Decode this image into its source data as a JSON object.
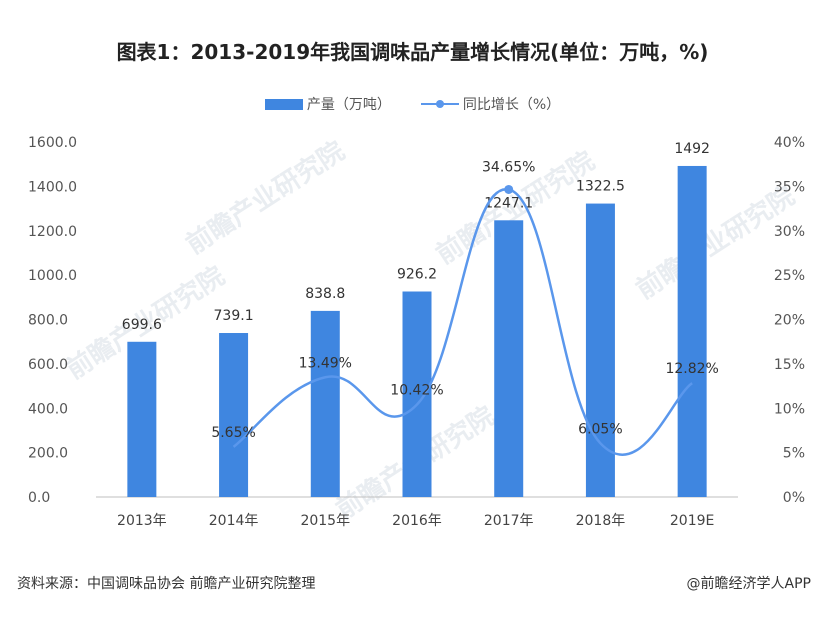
{
  "title": "图表1：2013-2019年我国调味品产量增长情况(单位：万吨，%)",
  "source": "资料来源：中国调味品协会 前瞻产业研究院整理",
  "credit": "@前瞻经济学人APP",
  "watermark": "前瞻产业研究院",
  "colors": {
    "bar": "#3f86e0",
    "line": "#5a97ec"
  },
  "chart_data": {
    "type": "bar",
    "categories": [
      "2013年",
      "2014年",
      "2015年",
      "2016年",
      "2017年",
      "2018年",
      "2019E"
    ],
    "series": [
      {
        "name": "产量（万吨）",
        "type": "bar",
        "axis": "left",
        "values": [
          699.6,
          739.1,
          838.8,
          926.2,
          1247.1,
          1322.5,
          1492
        ],
        "labels": [
          "699.6",
          "739.1",
          "838.8",
          "926.2",
          "1247.1",
          "1322.5",
          "1492"
        ]
      },
      {
        "name": "同比增长（%）",
        "type": "line",
        "axis": "right",
        "values": [
          null,
          5.65,
          13.49,
          10.42,
          34.65,
          6.05,
          12.82
        ],
        "labels": [
          "",
          "5.65%",
          "13.49%",
          "10.42%",
          "34.65%",
          "6.05%",
          "12.82%"
        ]
      }
    ],
    "y_left": {
      "range": [
        0,
        1600
      ],
      "ticks": [
        "0.0",
        "200.0",
        "400.0",
        "600.0",
        "800.0",
        "1000.0",
        "1200.0",
        "1400.0",
        "1600.0"
      ]
    },
    "y_right": {
      "range": [
        0,
        40
      ],
      "ticks": [
        "0%",
        "5%",
        "10%",
        "15%",
        "20%",
        "25%",
        "30%",
        "35%",
        "40%"
      ]
    },
    "grid": false,
    "legend": "top-center"
  }
}
